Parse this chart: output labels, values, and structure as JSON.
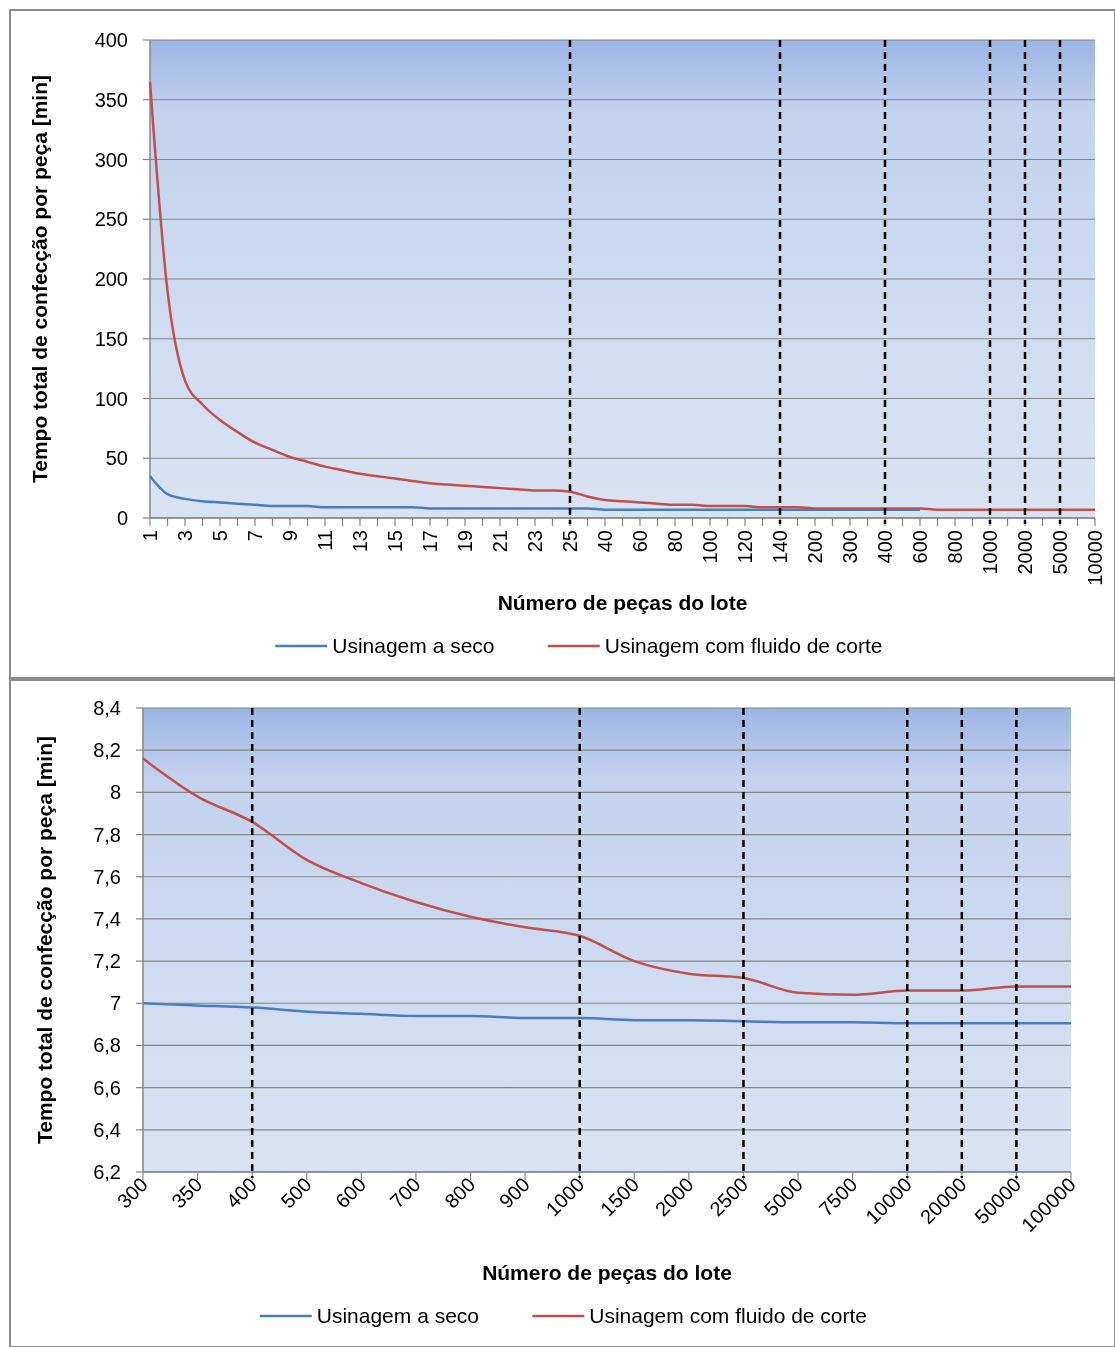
{
  "chart_data": [
    {
      "type": "line",
      "xlabel": "Número de peças do lote",
      "ylabel": "Tempo total de confecção por peça [min]",
      "categories": [
        "1",
        null,
        "3",
        null,
        "5",
        null,
        "7",
        null,
        "9",
        null,
        "11",
        null,
        "13",
        null,
        "15",
        null,
        "17",
        null,
        "19",
        null,
        "21",
        null,
        "23",
        null,
        "25",
        null,
        "40",
        null,
        "60",
        null,
        "80",
        null,
        "100",
        null,
        "120",
        null,
        "140",
        null,
        "200",
        null,
        "300",
        null,
        "400",
        null,
        "600",
        null,
        "800",
        null,
        "1000",
        null,
        "2000",
        null,
        "5000",
        null,
        "10000"
      ],
      "series": [
        {
          "name": "Usinagem a seco",
          "color": "#4a7ebb",
          "values": [
            35,
            20,
            16,
            14,
            13,
            12,
            11,
            10,
            10,
            10,
            9,
            9,
            9,
            9,
            9,
            9,
            8,
            8,
            8,
            8,
            8,
            8,
            8,
            8,
            8,
            8,
            7,
            7,
            7,
            7,
            7,
            7,
            7,
            7,
            7,
            7,
            7,
            7,
            7,
            7,
            7,
            7,
            7,
            7,
            7,
            null,
            null,
            null,
            null,
            null,
            null,
            null,
            null,
            null,
            null
          ]
        },
        {
          "name": "Usinagem com fluido de corte",
          "color": "#c0504d",
          "values": [
            365,
            190,
            115,
            95,
            82,
            72,
            63,
            57,
            51,
            47,
            43,
            40,
            37,
            35,
            33,
            31,
            29,
            28,
            27,
            26,
            25,
            24,
            23,
            23,
            22,
            18,
            15,
            14,
            13,
            12,
            11,
            11,
            10,
            10,
            10,
            9,
            9,
            9,
            8,
            8,
            8,
            8,
            8,
            8,
            8,
            7,
            7,
            7,
            7,
            7,
            7,
            7,
            7,
            7,
            7
          ]
        }
      ],
      "ylim": [
        0,
        400
      ],
      "yticks": [
        0,
        50,
        100,
        150,
        200,
        250,
        300,
        350,
        400
      ],
      "grid": "y",
      "legend": "bottom",
      "line_style": "solid",
      "marker": "none",
      "ref_lines": [
        {
          "axis": "x",
          "value": "25",
          "color": "#000000",
          "line_style": "dashed"
        },
        {
          "axis": "x",
          "value": "140",
          "color": "#000000",
          "line_style": "dashed"
        },
        {
          "axis": "x",
          "value": "400",
          "color": "#000000",
          "line_style": "dashed"
        },
        {
          "axis": "x",
          "value": "1000",
          "color": "#000000",
          "line_style": "dashed"
        },
        {
          "axis": "x",
          "value": "2000",
          "color": "#000000",
          "line_style": "dashed"
        },
        {
          "axis": "x",
          "value": "5000",
          "color": "#000000",
          "line_style": "dashed"
        }
      ]
    },
    {
      "type": "line",
      "xlabel": "Número de peças do lote",
      "ylabel": "Tempo total de confecção por peça [min]",
      "categories": [
        "300",
        "350",
        "400",
        "500",
        "600",
        "700",
        "800",
        "900",
        "1000",
        "1500",
        "2000",
        "2500",
        "5000",
        "7500",
        "10000",
        "20000",
        "50000",
        "100000"
      ],
      "series": [
        {
          "name": "Usinagem a seco",
          "color": "#4a7ebb",
          "values": [
            7,
            6.99,
            6.98,
            6.96,
            6.95,
            6.94,
            6.94,
            6.93,
            6.93,
            6.92,
            6.92,
            6.915,
            6.91,
            6.91,
            6.905,
            6.905,
            6.905,
            6.905
          ]
        },
        {
          "name": "Usinagem com fluido de corte",
          "color": "#c0504d",
          "values": [
            8.16,
            7.98,
            7.86,
            7.68,
            7.57,
            7.48,
            7.41,
            7.36,
            7.32,
            7.2,
            7.14,
            7.12,
            7.05,
            7.04,
            7.06,
            7.06,
            7.08,
            7.08
          ]
        }
      ],
      "ylim": [
        6.2,
        8.4
      ],
      "yticks": [
        {
          "value": 6.2,
          "label": "6,2"
        },
        {
          "value": 6.4,
          "label": "6,4"
        },
        {
          "value": 6.6,
          "label": "6,6"
        },
        {
          "value": 6.8,
          "label": "6,8"
        },
        7,
        {
          "value": 7.2,
          "label": "7,2"
        },
        {
          "value": 7.4,
          "label": "7,4"
        },
        {
          "value": 7.6,
          "label": "7,6"
        },
        {
          "value": 7.8,
          "label": "7,8"
        },
        8,
        {
          "value": 8.2,
          "label": "8,2"
        },
        {
          "value": 8.4,
          "label": "8,4"
        }
      ],
      "grid": "y",
      "legend": "bottom",
      "line_style": "solid",
      "marker": "none",
      "ref_lines": [
        {
          "axis": "x",
          "value": "400",
          "color": "#000000",
          "line_style": "dashed"
        },
        {
          "axis": "x",
          "value": "1000",
          "color": "#000000",
          "line_style": "dashed"
        },
        {
          "axis": "x",
          "value": "2500",
          "color": "#000000",
          "line_style": "dashed"
        },
        {
          "axis": "x",
          "value": "10000",
          "color": "#000000",
          "line_style": "dashed"
        },
        {
          "axis": "x",
          "value": "20000",
          "color": "#000000",
          "line_style": "dashed"
        },
        {
          "axis": "x",
          "value": "50000",
          "color": "#000000",
          "line_style": "dashed"
        }
      ]
    }
  ]
}
